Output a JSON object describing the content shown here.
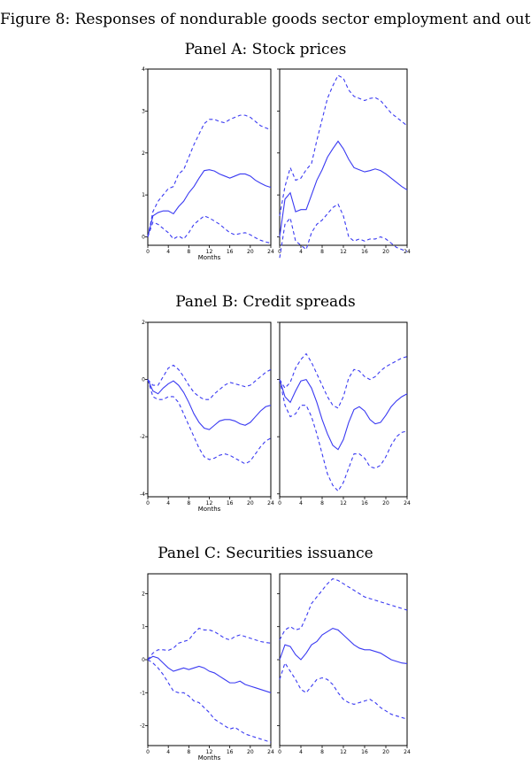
{
  "figure": {
    "title": "Figure 8: Responses of nondurable goods sector employment and output",
    "series_color": "#3a3af2"
  },
  "chart_data": [
    {
      "type": "line",
      "panel_title": "Panel A: Stock prices",
      "xlabel": "Months",
      "xlim": [
        0,
        24
      ],
      "ylim": [
        -0.2,
        4
      ],
      "xticks": [
        0,
        4,
        8,
        12,
        16,
        20,
        24
      ],
      "yticks": [
        0,
        1,
        2,
        3,
        4
      ],
      "subplots": [
        {
          "x": [
            0,
            1,
            2,
            3,
            4,
            5,
            6,
            7,
            8,
            9,
            10,
            11,
            12,
            13,
            14,
            15,
            16,
            17,
            18,
            19,
            20,
            21,
            22,
            23,
            24
          ],
          "series": [
            {
              "name": "upper",
              "style": "dashed",
              "values": [
                0,
                0.6,
                0.85,
                1.0,
                1.15,
                1.2,
                1.5,
                1.6,
                1.9,
                2.2,
                2.45,
                2.7,
                2.8,
                2.8,
                2.75,
                2.72,
                2.8,
                2.85,
                2.9,
                2.9,
                2.85,
                2.75,
                2.65,
                2.6,
                2.55
              ]
            },
            {
              "name": "response",
              "style": "solid",
              "values": [
                0,
                0.5,
                0.58,
                0.62,
                0.62,
                0.55,
                0.72,
                0.85,
                1.05,
                1.2,
                1.4,
                1.58,
                1.6,
                1.57,
                1.5,
                1.45,
                1.4,
                1.45,
                1.5,
                1.5,
                1.45,
                1.35,
                1.28,
                1.22,
                1.18
              ]
            },
            {
              "name": "lower",
              "style": "dashed",
              "values": [
                0,
                0.35,
                0.3,
                0.2,
                0.1,
                -0.05,
                0.02,
                -0.05,
                0.1,
                0.3,
                0.4,
                0.5,
                0.45,
                0.38,
                0.3,
                0.2,
                0.1,
                0.05,
                0.08,
                0.1,
                0.05,
                -0.02,
                -0.08,
                -0.12,
                -0.15
              ]
            }
          ]
        },
        {
          "x": [
            0,
            1,
            2,
            3,
            4,
            5,
            6,
            7,
            8,
            9,
            10,
            11,
            12,
            13,
            14,
            15,
            16,
            17,
            18,
            19,
            20,
            21,
            22,
            23,
            24
          ],
          "series": [
            {
              "name": "upper",
              "style": "dashed",
              "values": [
                0.5,
                1.2,
                1.65,
                1.35,
                1.4,
                1.6,
                1.75,
                2.3,
                2.8,
                3.3,
                3.6,
                3.85,
                3.78,
                3.5,
                3.35,
                3.3,
                3.25,
                3.3,
                3.32,
                3.25,
                3.1,
                2.95,
                2.85,
                2.75,
                2.65
              ]
            },
            {
              "name": "response",
              "style": "solid",
              "values": [
                0,
                0.9,
                1.05,
                0.6,
                0.65,
                0.65,
                1.0,
                1.35,
                1.6,
                1.9,
                2.1,
                2.28,
                2.1,
                1.85,
                1.65,
                1.6,
                1.55,
                1.58,
                1.62,
                1.58,
                1.5,
                1.4,
                1.3,
                1.2,
                1.12
              ]
            },
            {
              "name": "lower",
              "style": "dashed",
              "values": [
                -0.5,
                0.3,
                0.45,
                -0.1,
                -0.2,
                -0.3,
                0.1,
                0.3,
                0.4,
                0.55,
                0.7,
                0.78,
                0.5,
                0.0,
                -0.1,
                -0.05,
                -0.1,
                -0.05,
                -0.05,
                0.0,
                -0.05,
                -0.15,
                -0.25,
                -0.3,
                -0.35
              ]
            }
          ]
        }
      ]
    },
    {
      "type": "line",
      "panel_title": "Panel B: Credit spreads",
      "xlabel": "Months",
      "xlim": [
        0,
        24
      ],
      "ylim": [
        -4.1,
        2
      ],
      "xticks": [
        0,
        4,
        8,
        12,
        16,
        20,
        24
      ],
      "yticks": [
        -4,
        -2,
        0,
        2
      ],
      "subplots": [
        {
          "x": [
            0,
            1,
            2,
            3,
            4,
            5,
            6,
            7,
            8,
            9,
            10,
            11,
            12,
            13,
            14,
            15,
            16,
            17,
            18,
            19,
            20,
            21,
            22,
            23,
            24
          ],
          "series": [
            {
              "name": "upper",
              "style": "dashed",
              "values": [
                0,
                -0.2,
                -0.2,
                0.1,
                0.4,
                0.5,
                0.35,
                0.1,
                -0.2,
                -0.45,
                -0.6,
                -0.7,
                -0.7,
                -0.5,
                -0.35,
                -0.2,
                -0.1,
                -0.15,
                -0.2,
                -0.25,
                -0.2,
                -0.05,
                0.1,
                0.25,
                0.35
              ]
            },
            {
              "name": "response",
              "style": "solid",
              "values": [
                0,
                -0.4,
                -0.5,
                -0.3,
                -0.15,
                -0.05,
                -0.2,
                -0.45,
                -0.8,
                -1.2,
                -1.5,
                -1.7,
                -1.75,
                -1.6,
                -1.45,
                -1.4,
                -1.4,
                -1.45,
                -1.55,
                -1.6,
                -1.5,
                -1.3,
                -1.1,
                -0.95,
                -0.9
              ]
            },
            {
              "name": "lower",
              "style": "dashed",
              "values": [
                0,
                -0.6,
                -0.7,
                -0.7,
                -0.6,
                -0.6,
                -0.8,
                -1.2,
                -1.6,
                -2.0,
                -2.4,
                -2.7,
                -2.8,
                -2.75,
                -2.65,
                -2.6,
                -2.65,
                -2.75,
                -2.85,
                -2.95,
                -2.85,
                -2.6,
                -2.35,
                -2.15,
                -2.05
              ]
            }
          ]
        },
        {
          "x": [
            0,
            1,
            2,
            3,
            4,
            5,
            6,
            7,
            8,
            9,
            10,
            11,
            12,
            13,
            14,
            15,
            16,
            17,
            18,
            19,
            20,
            21,
            22,
            23,
            24
          ],
          "series": [
            {
              "name": "upper",
              "style": "dashed",
              "values": [
                0,
                -0.3,
                -0.1,
                0.4,
                0.7,
                0.9,
                0.6,
                0.2,
                -0.2,
                -0.6,
                -0.9,
                -1.0,
                -0.6,
                0.05,
                0.35,
                0.3,
                0.1,
                0.0,
                0.1,
                0.3,
                0.45,
                0.55,
                0.65,
                0.75,
                0.8
              ]
            },
            {
              "name": "response",
              "style": "solid",
              "values": [
                0,
                -0.6,
                -0.8,
                -0.4,
                -0.05,
                0.0,
                -0.3,
                -0.8,
                -1.4,
                -1.9,
                -2.3,
                -2.45,
                -2.1,
                -1.5,
                -1.05,
                -0.95,
                -1.1,
                -1.4,
                -1.55,
                -1.5,
                -1.25,
                -0.95,
                -0.75,
                -0.6,
                -0.5
              ]
            },
            {
              "name": "lower",
              "style": "dashed",
              "values": [
                0,
                -0.9,
                -1.3,
                -1.2,
                -0.9,
                -0.9,
                -1.3,
                -1.9,
                -2.6,
                -3.3,
                -3.7,
                -3.9,
                -3.6,
                -3.1,
                -2.6,
                -2.6,
                -2.75,
                -3.05,
                -3.1,
                -3.0,
                -2.7,
                -2.3,
                -2.0,
                -1.85,
                -1.8
              ]
            }
          ]
        }
      ]
    },
    {
      "type": "line",
      "panel_title": "Panel C: Securities issuance",
      "xlabel": "Months",
      "xlim": [
        0,
        24
      ],
      "ylim": [
        -2.6,
        2.6
      ],
      "xticks": [
        0,
        4,
        8,
        12,
        16,
        20,
        24
      ],
      "yticks": [
        -2,
        -1,
        0,
        1,
        2
      ],
      "subplots": [
        {
          "x": [
            0,
            1,
            2,
            3,
            4,
            5,
            6,
            7,
            8,
            9,
            10,
            11,
            12,
            13,
            14,
            15,
            16,
            17,
            18,
            19,
            20,
            21,
            22,
            23,
            24
          ],
          "series": [
            {
              "name": "upper",
              "style": "dashed",
              "values": [
                0,
                0.2,
                0.3,
                0.3,
                0.28,
                0.35,
                0.5,
                0.55,
                0.6,
                0.8,
                0.95,
                0.9,
                0.9,
                0.85,
                0.75,
                0.65,
                0.6,
                0.7,
                0.75,
                0.7,
                0.65,
                0.6,
                0.55,
                0.52,
                0.5
              ]
            },
            {
              "name": "response",
              "style": "solid",
              "values": [
                0,
                0.1,
                0.05,
                -0.1,
                -0.25,
                -0.35,
                -0.3,
                -0.25,
                -0.3,
                -0.25,
                -0.2,
                -0.25,
                -0.35,
                -0.4,
                -0.5,
                -0.6,
                -0.7,
                -0.7,
                -0.65,
                -0.75,
                -0.8,
                -0.85,
                -0.9,
                -0.95,
                -1.0
              ]
            },
            {
              "name": "lower",
              "style": "dashed",
              "values": [
                0,
                -0.1,
                -0.25,
                -0.45,
                -0.7,
                -0.95,
                -1.0,
                -1.0,
                -1.1,
                -1.25,
                -1.3,
                -1.45,
                -1.6,
                -1.8,
                -1.9,
                -2.0,
                -2.1,
                -2.05,
                -2.15,
                -2.25,
                -2.3,
                -2.35,
                -2.4,
                -2.45,
                -2.5
              ]
            }
          ]
        },
        {
          "x": [
            0,
            1,
            2,
            3,
            4,
            5,
            6,
            7,
            8,
            9,
            10,
            11,
            12,
            13,
            14,
            15,
            16,
            17,
            18,
            19,
            20,
            21,
            22,
            23,
            24
          ],
          "series": [
            {
              "name": "upper",
              "style": "dashed",
              "values": [
                0.6,
                0.9,
                1.0,
                0.9,
                0.95,
                1.3,
                1.7,
                1.9,
                2.1,
                2.3,
                2.45,
                2.4,
                2.3,
                2.2,
                2.1,
                2.0,
                1.9,
                1.85,
                1.8,
                1.75,
                1.7,
                1.65,
                1.6,
                1.55,
                1.5
              ]
            },
            {
              "name": "response",
              "style": "solid",
              "values": [
                0,
                0.45,
                0.4,
                0.15,
                0.0,
                0.2,
                0.45,
                0.55,
                0.75,
                0.85,
                0.95,
                0.9,
                0.75,
                0.6,
                0.45,
                0.35,
                0.3,
                0.3,
                0.25,
                0.2,
                0.1,
                0.0,
                -0.05,
                -0.1,
                -0.12
              ]
            },
            {
              "name": "lower",
              "style": "dashed",
              "values": [
                -0.6,
                -0.1,
                -0.35,
                -0.6,
                -0.9,
                -1.0,
                -0.8,
                -0.6,
                -0.55,
                -0.6,
                -0.75,
                -1.0,
                -1.2,
                -1.3,
                -1.35,
                -1.3,
                -1.25,
                -1.2,
                -1.3,
                -1.45,
                -1.55,
                -1.65,
                -1.7,
                -1.75,
                -1.8
              ]
            }
          ]
        }
      ]
    }
  ]
}
